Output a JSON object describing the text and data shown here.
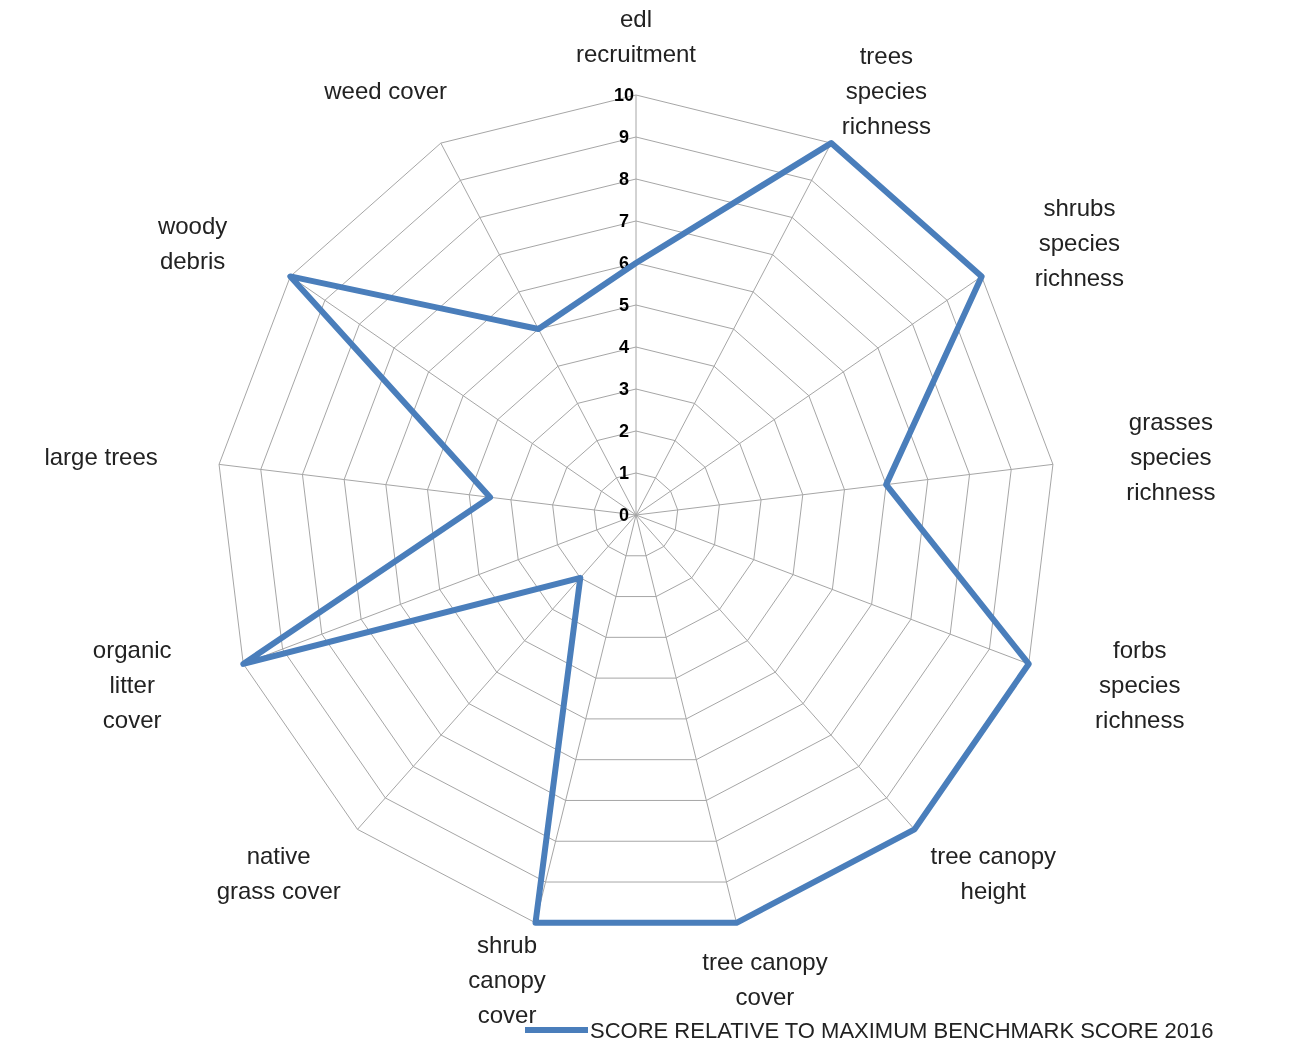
{
  "chart_data": {
    "type": "radar",
    "categories": [
      "edl recruitment",
      "trees species richness",
      "shrubs species richness",
      "grasses species richness",
      "forbs species richness",
      "tree canopy height",
      "tree canopy cover",
      "shrub canopy cover",
      "native grass cover",
      "organic litter cover",
      "large trees",
      "woody debris",
      "weed cover"
    ],
    "series": [
      {
        "name": "SCORE RELATIVE TO MAXIMUM BENCHMARK SCORE 2016",
        "color": "#4a7ebb",
        "values": [
          6,
          10,
          10,
          6,
          10,
          10,
          10,
          10,
          2,
          10,
          3.5,
          10,
          5
        ]
      }
    ],
    "ylim": [
      0,
      10
    ],
    "yticks": [
      0,
      1,
      2,
      3,
      4,
      5,
      6,
      7,
      8,
      9,
      10
    ],
    "grid": true,
    "legend": "bottom",
    "marker": "none",
    "line_style": "solid"
  }
}
